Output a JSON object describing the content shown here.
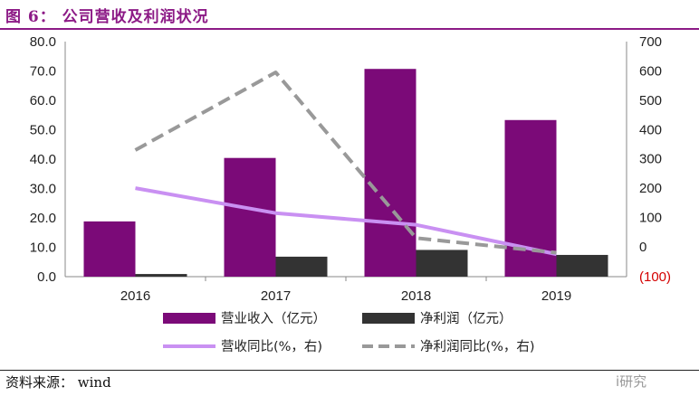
{
  "header": {
    "title": "图 6： 公司营收及利润状况"
  },
  "footer": {
    "source": "资料来源： wind",
    "watermark": "i研究"
  },
  "chart_data": {
    "type": "bar",
    "categories": [
      "2016",
      "2017",
      "2018",
      "2019"
    ],
    "series": [
      {
        "name": "营业收入（亿元）",
        "kind": "bar",
        "axis": "left",
        "color": "#7b0a78",
        "values": [
          18.8,
          40.4,
          70.7,
          53.3
        ]
      },
      {
        "name": "净利润（亿元）",
        "kind": "bar",
        "axis": "left",
        "color": "#333333",
        "values": [
          0.9,
          6.8,
          9.1,
          7.4
        ]
      },
      {
        "name": "营收同比(%，右)",
        "kind": "line",
        "axis": "right",
        "color": "#c990f2",
        "dash": "solid",
        "values": [
          200,
          115,
          75,
          -25
        ]
      },
      {
        "name": "净利润同比(%，右)",
        "kind": "line",
        "axis": "right",
        "color": "#999999",
        "dash": "dashed",
        "values": [
          330,
          595,
          30,
          -20
        ]
      }
    ],
    "left_axis": {
      "min": 0,
      "max": 80,
      "step": 10,
      "ticks": [
        "0.0",
        "10.0",
        "20.0",
        "30.0",
        "40.0",
        "50.0",
        "60.0",
        "70.0",
        "80.0"
      ]
    },
    "right_axis": {
      "min": -100,
      "max": 700,
      "step": 100,
      "ticks": [
        "(100)",
        "0",
        "100",
        "200",
        "300",
        "400",
        "500",
        "600",
        "700"
      ]
    },
    "grid": false,
    "legend_position": "bottom"
  }
}
